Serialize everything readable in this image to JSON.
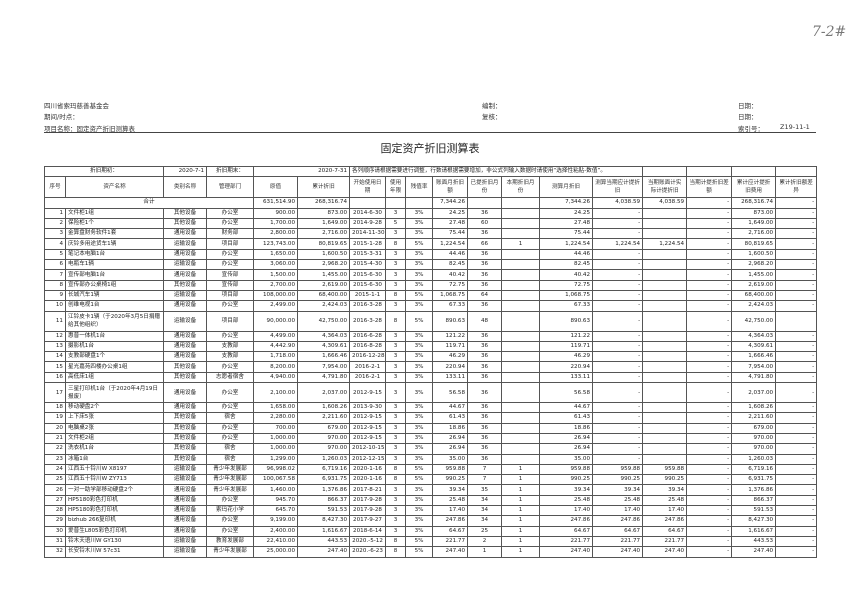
{
  "handwritten_mark": "7-2#",
  "header": {
    "org": "四川省索玛慈善基金会",
    "period_label": "期间/时点：",
    "project_label": "项目名称：固定资产折旧测算表",
    "prepared_label": "编制：",
    "reviewed_label": "复核：",
    "date_label_1": "日期：",
    "date_label_2": "日期：",
    "index_label": "索引号：",
    "index_value": "Z19-11-1"
  },
  "title": "固定资产折旧测算表",
  "period": {
    "start_label": "折旧期初：",
    "start_value": "2020-7-1",
    "end_label": "折旧期末：",
    "end_value": "2020-7-31",
    "note": "各列顺序请根据需要进行调整，行数请根据需要增加，非公式列输入数据时请使用“选择性粘贴-数值”。"
  },
  "columns": [
    "序号",
    "资产名称",
    "类别名称",
    "管理部门",
    "原值",
    "累计折旧",
    "开始使用日期",
    "使用年限",
    "残值率",
    "账面月折旧额",
    "已提折旧月份",
    "本期折旧月份",
    "测算月折旧",
    "测算当期应计提折旧",
    "当期账面计实际计提折旧",
    "当期计提折旧差额",
    "累计应计提折旧费用",
    "累计折旧额差异"
  ],
  "total": {
    "label": "合计",
    "original_value": "631,514.90",
    "accum_depr": "268,316.74",
    "book_monthly": "7,344.26",
    "calc_monthly": "7,344.26",
    "calc_period": "4,038.59",
    "book_period": "4,038.59",
    "diff_period": "-",
    "accum_calc": "268,316.74",
    "accum_diff": "-"
  },
  "rows": [
    [
      "1",
      "文件柜1组",
      "其他设备",
      "办公室",
      "900.00",
      "873.00",
      "2014-6-30",
      "3",
      "3%",
      "24.25",
      "36",
      "",
      "24.25",
      "-",
      "",
      "-",
      "873.00",
      "-"
    ],
    [
      "2",
      "保险柜1个",
      "其他设备",
      "办公室",
      "1,700.00",
      "1,649.00",
      "2014-9-28",
      "5",
      "3%",
      "27.48",
      "60",
      "",
      "27.48",
      "-",
      "",
      "-",
      "1,649.00",
      "-"
    ],
    [
      "3",
      "金算盘财务软件1套",
      "通用设备",
      "财务部",
      "2,800.00",
      "2,716.00",
      "2014-11-30",
      "3",
      "3%",
      "75.44",
      "36",
      "",
      "75.44",
      "-",
      "",
      "-",
      "2,716.00",
      "-"
    ],
    [
      "4",
      "庆铃多用途货车1辆",
      "运输设备",
      "项目部",
      "123,743.00",
      "80,819.65",
      "2015-1-28",
      "8",
      "5%",
      "1,224.54",
      "66",
      "1",
      "1,224.54",
      "1,224.54",
      "1,224.54",
      "-",
      "80,819.65",
      "-"
    ],
    [
      "5",
      "笔记本电脑1台",
      "通用设备",
      "办公室",
      "1,650.00",
      "1,600.50",
      "2015-3-31",
      "3",
      "3%",
      "44.46",
      "36",
      "",
      "44.46",
      "-",
      "",
      "-",
      "1,600.50",
      "-"
    ],
    [
      "6",
      "电瓶车1辆",
      "运输设备",
      "办公室",
      "3,060.00",
      "2,968.20",
      "2015-4-30",
      "3",
      "3%",
      "82.45",
      "36",
      "",
      "82.45",
      "-",
      "",
      "-",
      "2,968.20",
      "-"
    ],
    [
      "7",
      "宣传部电脑1台",
      "通用设备",
      "宣传部",
      "1,500.00",
      "1,455.00",
      "2015-6-30",
      "3",
      "3%",
      "40.42",
      "36",
      "",
      "40.42",
      "-",
      "",
      "-",
      "1,455.00",
      "-"
    ],
    [
      "8",
      "宣传部办公桌椅1组",
      "其他设备",
      "宣传部",
      "2,700.00",
      "2,619.00",
      "2015-6-30",
      "3",
      "3%",
      "72.75",
      "36",
      "",
      "72.75",
      "-",
      "",
      "-",
      "2,619.00",
      "-"
    ],
    [
      "9",
      "长城汽车1辆",
      "运输设备",
      "项目部",
      "108,000.00",
      "68,400.00",
      "2015-1-1",
      "8",
      "5%",
      "1,068.75",
      "64",
      "",
      "1,068.75",
      "-",
      "",
      "-",
      "68,400.00",
      "-"
    ],
    [
      "10",
      "创维电视1台",
      "通用设备",
      "办公室",
      "2,499.00",
      "2,424.03",
      "2016-3-28",
      "3",
      "3%",
      "67.33",
      "36",
      "",
      "67.33",
      "-",
      "",
      "-",
      "2,424.03",
      "-"
    ],
    [
      "11",
      "江铃皮卡1辆（于2020年3月5日捐赠给其他组织）",
      "运输设备",
      "项目部",
      "90,000.00",
      "42,750.00",
      "2016-3-28",
      "8",
      "5%",
      "890.63",
      "48",
      "",
      "890.63",
      "-",
      "",
      "-",
      "42,750.00",
      ""
    ],
    [
      "12",
      "惠普一体机1台",
      "通用设备",
      "办公室",
      "4,499.00",
      "4,364.03",
      "2016-6-28",
      "3",
      "3%",
      "121.22",
      "36",
      "",
      "121.22",
      "-",
      "",
      "-",
      "4,364.03",
      "-"
    ],
    [
      "13",
      "摄影机1台",
      "通用设备",
      "支教部",
      "4,442.90",
      "4,309.61",
      "2016-8-28",
      "3",
      "3%",
      "119.71",
      "36",
      "",
      "119.71",
      "-",
      "",
      "-",
      "4,309.61",
      "-"
    ],
    [
      "14",
      "支教部硬盘1个",
      "通用设备",
      "支教部",
      "1,718.00",
      "1,666.46",
      "2016-12-28",
      "3",
      "3%",
      "46.29",
      "36",
      "",
      "46.29",
      "-",
      "",
      "-",
      "1,666.46",
      "-"
    ],
    [
      "15",
      "星光嘉苑四楼办公桌1组",
      "其他设备",
      "办公室",
      "8,200.00",
      "7,954.00",
      "2016-2-1",
      "3",
      "3%",
      "220.94",
      "36",
      "",
      "220.94",
      "-",
      "",
      "-",
      "7,954.00",
      "-"
    ],
    [
      "16",
      "高低床1组",
      "其他设备",
      "志愿者宿舍",
      "4,940.00",
      "4,791.80",
      "2016-2-1",
      "3",
      "3%",
      "133.11",
      "36",
      "",
      "133.11",
      "-",
      "",
      "-",
      "4,791.80",
      "-"
    ],
    [
      "17",
      "三星打印机1台（于2020年4月19日报废）",
      "通用设备",
      "办公室",
      "2,100.00",
      "2,037.00",
      "2012-9-15",
      "3",
      "3%",
      "56.58",
      "36",
      "",
      "56.58",
      "-",
      "",
      "-",
      "2,037.00",
      "-"
    ],
    [
      "18",
      "移动硬盘2个",
      "通用设备",
      "办公室",
      "1,658.00",
      "1,608.26",
      "2013-9-30",
      "3",
      "3%",
      "44.67",
      "36",
      "",
      "44.67",
      "-",
      "",
      "-",
      "1,608.26",
      "-"
    ],
    [
      "19",
      "上下床5张",
      "其他设备",
      "宿舍",
      "2,280.00",
      "2,211.60",
      "2012-9-15",
      "3",
      "3%",
      "61.43",
      "36",
      "",
      "61.43",
      "-",
      "",
      "-",
      "2,211.60",
      "-"
    ],
    [
      "20",
      "电脑桌2张",
      "其他设备",
      "办公室",
      "700.00",
      "679.00",
      "2012-9-15",
      "3",
      "3%",
      "18.86",
      "36",
      "",
      "18.86",
      "-",
      "",
      "-",
      "679.00",
      "-"
    ],
    [
      "21",
      "文件柜2组",
      "其他设备",
      "办公室",
      "1,000.00",
      "970.00",
      "2012-9-15",
      "3",
      "3%",
      "26.94",
      "36",
      "",
      "26.94",
      "-",
      "",
      "-",
      "970.00",
      "-"
    ],
    [
      "22",
      "洗衣机1台",
      "其他设备",
      "宿舍",
      "1,000.00",
      "970.00",
      "2012-10-15",
      "3",
      "3%",
      "26.94",
      "36",
      "",
      "26.94",
      "-",
      "",
      "-",
      "970.00",
      "-"
    ],
    [
      "23",
      "冰箱1台",
      "其他设备",
      "宿舍",
      "1,299.00",
      "1,260.03",
      "2012-12-15",
      "3",
      "3%",
      "35.00",
      "36",
      "",
      "35.00",
      "-",
      "",
      "-",
      "1,260.03",
      "-"
    ],
    [
      "24",
      "江西五十铃川W X8197",
      "运输设备",
      "青少年发展部",
      "96,998.02",
      "6,719.16",
      "2020-1-16",
      "8",
      "5%",
      "959.88",
      "7",
      "1",
      "959.88",
      "959.88",
      "959.88",
      "-",
      "6,719.16",
      "-"
    ],
    [
      "25",
      "江西五十铃川W ZY713",
      "运输设备",
      "青少年发展部",
      "100,067.58",
      "6,931.75",
      "2020-1-16",
      "8",
      "5%",
      "990.25",
      "7",
      "1",
      "990.25",
      "990.25",
      "990.25",
      "-",
      "6,931.75",
      "-"
    ],
    [
      "26",
      "一对一助学部移动硬盘2个",
      "通用设备",
      "青少年发展部",
      "1,460.00",
      "1,376.86",
      "2017-8-21",
      "3",
      "3%",
      "39.34",
      "35",
      "1",
      "39.34",
      "39.34",
      "39.34",
      "-",
      "1,376.86",
      "-"
    ],
    [
      "27",
      "HP5180彩色打印机",
      "通用设备",
      "办公室",
      "945.70",
      "866.37",
      "2017-9-28",
      "3",
      "3%",
      "25.48",
      "34",
      "1",
      "25.48",
      "25.48",
      "25.48",
      "-",
      "866.37",
      "-"
    ],
    [
      "28",
      "HP5180彩色打印机",
      "通用设备",
      "索玛花小学",
      "645.70",
      "591.53",
      "2017-9-28",
      "3",
      "3%",
      "17.40",
      "34",
      "1",
      "17.40",
      "17.40",
      "17.40",
      "-",
      "591.53",
      "-"
    ],
    [
      "29",
      "bizhub 266复印机",
      "通用设备",
      "办公室",
      "9,199.00",
      "8,427.30",
      "2017-9-27",
      "3",
      "3%",
      "247.86",
      "34",
      "1",
      "247.86",
      "247.86",
      "247.86",
      "-",
      "8,427.30",
      "-"
    ],
    [
      "30",
      "爱普生L805彩色打印机",
      "通用设备",
      "办公室",
      "2,400.00",
      "1,616.67",
      "2018-6-14",
      "3",
      "3%",
      "64.67",
      "25",
      "1",
      "64.67",
      "64.67",
      "64.67",
      "-",
      "1,616.67",
      "-"
    ],
    [
      "31",
      "铃木天语川W GY130",
      "运输设备",
      "教育发展部",
      "22,410.00",
      "443.53",
      "2020.-5-12",
      "8",
      "5%",
      "221.77",
      "2",
      "1",
      "221.77",
      "221.77",
      "221.77",
      "-",
      "443.53",
      "-"
    ],
    [
      "32",
      "长安铃木川W 57c31",
      "运输设备",
      "青少年发展部",
      "25,000.00",
      "247.40",
      "2020.-6-23",
      "8",
      "5%",
      "247.40",
      "1",
      "1",
      "247.40",
      "247.40",
      "247.40",
      "-",
      "247.40",
      "-"
    ]
  ]
}
